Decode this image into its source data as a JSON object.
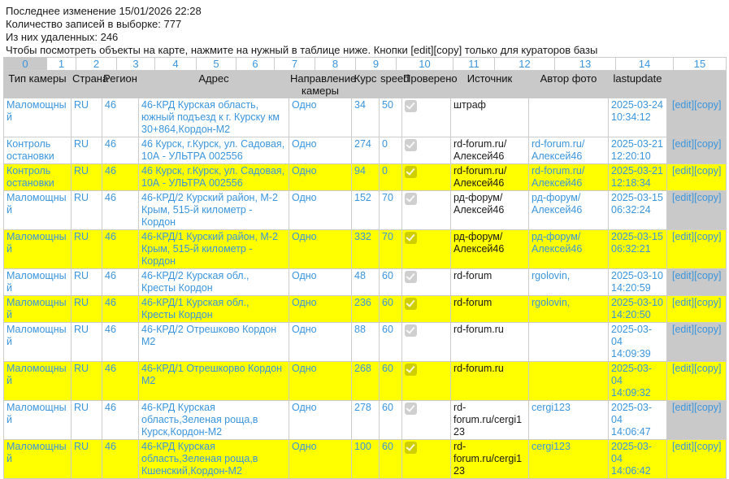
{
  "page": {
    "info_lines": [
      "Последнее изменение 15/01/2026 22:28",
      "Количество записей в выборке: 777",
      "Из них удаленных: 246",
      "Чтобы посмотреть объекты на карте, нажмите на нужный в таблице ниже. Кнопки [edit][copy] только для кураторов базы"
    ]
  },
  "table": {
    "index_columns": [
      "0",
      "1",
      "2",
      "3",
      "4",
      "5",
      "6",
      "7",
      "8",
      "9",
      "10",
      "11",
      "12",
      "13",
      "14",
      "15"
    ],
    "selected_index": "0",
    "headers": [
      "Тип камеры",
      "Страна",
      "Регион",
      "Адрес",
      "Направление камеры",
      "Курс",
      "speed",
      "Проверено",
      "Источник",
      "Автор фото",
      "lastupdate",
      ""
    ],
    "edit_label": "[edit]",
    "copy_label": "[copy]",
    "colors": {
      "highlight_row": "#ffff00",
      "header_bg": "#c9c9c9",
      "link": "#3b95dd",
      "actions_col_bg": "#c9c9c9"
    },
    "rows": [
      {
        "type": "Маломощный",
        "country": "RU",
        "region": "46",
        "address": "46-КРД Курская область, южный подъезд к г. Курску км 30+864,Кордон-М2",
        "direction": "Одно",
        "course": "34",
        "speed": "50",
        "checked": true,
        "source": "штраф",
        "author": "",
        "lastupdate": "2025-03-24\n10:34:12",
        "highlighted": false
      },
      {
        "type": "Контроль остановки",
        "country": "RU",
        "region": "46",
        "address": "46 Курск, г.Курск, ул. Садовая, 10А - УЛЬТРА 002556",
        "direction": "Одно",
        "course": "274",
        "speed": "0",
        "checked": true,
        "source": "rd-forum.ru/\nАлексей46",
        "author": "rd-forum.ru/\nАлексей46",
        "lastupdate": "2025-03-21\n12:20:10",
        "highlighted": false
      },
      {
        "type": "Контроль остановки",
        "country": "RU",
        "region": "46",
        "address": "46 Курск, г.Курск, ул. Садовая, 10А - УЛЬТРА 002556",
        "direction": "Одно",
        "course": "94",
        "speed": "0",
        "checked": true,
        "source": "rd-forum.ru/\nАлексей46",
        "author": "rd-forum.ru/\nАлексей46",
        "lastupdate": "2025-03-21\n12:18:34",
        "highlighted": true
      },
      {
        "type": "Маломощный",
        "country": "RU",
        "region": "46",
        "address": "46-КРД/2 Курский район, М-2 Крым, 515-й километр - Кордон",
        "direction": "Одно",
        "course": "152",
        "speed": "70",
        "checked": true,
        "source": "рд-форум/\nАлексей46",
        "author": "рд-форум/\nАлексей46",
        "lastupdate": "2025-03-15\n06:32:24",
        "highlighted": false
      },
      {
        "type": "Маломощный",
        "country": "RU",
        "region": "46",
        "address": "46-КРД/1 Курский район, М-2 Крым, 515-й километр - Кордон",
        "direction": "Одно",
        "course": "332",
        "speed": "70",
        "checked": true,
        "source": "рд-форум/\nАлексей46",
        "author": "рд-форум/\nАлексей46",
        "lastupdate": "2025-03-15\n06:32:21",
        "highlighted": true
      },
      {
        "type": "Маломощный",
        "country": "RU",
        "region": "46",
        "address": "46-КРД/2 Курская обл., Кресты Кордон",
        "direction": "Одно",
        "course": "48",
        "speed": "60",
        "checked": true,
        "source": "rd-forum",
        "author": "rgolovin,",
        "lastupdate": "2025-03-10\n14:20:59",
        "highlighted": false
      },
      {
        "type": "Маломощный",
        "country": "RU",
        "region": "46",
        "address": "46-КРД/1 Курская обл., Кресты Кордон",
        "direction": "Одно",
        "course": "236",
        "speed": "60",
        "checked": true,
        "source": "rd-forum",
        "author": "rgolovin,",
        "lastupdate": "2025-03-10\n14:20:50",
        "highlighted": true
      },
      {
        "type": "Маломощный",
        "country": "RU",
        "region": "46",
        "address": "46-КРД/2 Отрешково Кордон М2",
        "direction": "Одно",
        "course": "88",
        "speed": "60",
        "checked": true,
        "source": "rd-forum.ru",
        "author": "",
        "lastupdate": "2025-03-\n04 14:09:39",
        "highlighted": false
      },
      {
        "type": "Маломощный",
        "country": "RU",
        "region": "46",
        "address": "46-КРД/1 Отрешкорво Кордон М2",
        "direction": "Одно",
        "course": "268",
        "speed": "60",
        "checked": true,
        "source": "rd-forum.ru",
        "author": "",
        "lastupdate": "2025-03-\n04 14:09:32",
        "highlighted": true
      },
      {
        "type": "Маломощный",
        "country": "RU",
        "region": "46",
        "address": "46-КРД Курская область,Зеленая роща,в Курск,Кордон-М2",
        "direction": "Одно",
        "course": "278",
        "speed": "60",
        "checked": true,
        "source": "rd-\nforum.ru/cergi123",
        "author": "cergi123",
        "lastupdate": "2025-03-\n04 14:06:47",
        "highlighted": false
      },
      {
        "type": "Маломощный",
        "country": "RU",
        "region": "46",
        "address": "46-КРД Курская область,Зеленая роща,в Кшенский,Кордон-М2",
        "direction": "Одно",
        "course": "100",
        "speed": "60",
        "checked": true,
        "source": "rd-\nforum.ru/cergi123",
        "author": "cergi123",
        "lastupdate": "2025-03-\n04 14:06:42",
        "highlighted": true
      }
    ]
  }
}
